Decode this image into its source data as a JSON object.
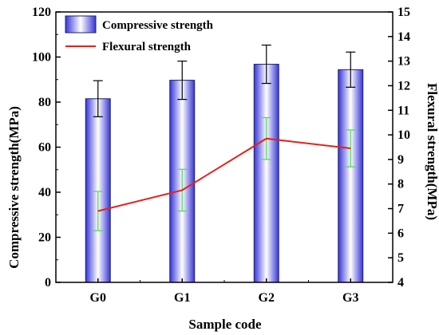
{
  "chart_data": {
    "type": "bar",
    "categories": [
      "G0",
      "G1",
      "G2",
      "G3"
    ],
    "xlabel": "Sample code",
    "ylabel_left": "Compressive strength(MPa)",
    "ylabel_right": "Flexural strength(MPa)",
    "ylim_left": [
      0,
      120
    ],
    "yticks_left": [
      0,
      20,
      40,
      60,
      80,
      100,
      120
    ],
    "ylim_right": [
      4,
      15
    ],
    "yticks_right": [
      4,
      5,
      6,
      7,
      8,
      9,
      10,
      11,
      12,
      13,
      14,
      15
    ],
    "grid": false,
    "legend_position": "top-left",
    "series": [
      {
        "name": "Compressive strength",
        "type": "bar",
        "axis": "left",
        "values": [
          81.5,
          89.7,
          96.8,
          94.4
        ],
        "errors": [
          8.0,
          8.5,
          8.5,
          7.8
        ],
        "color": "#4a4ae6"
      },
      {
        "name": "Flexural strength",
        "type": "line",
        "axis": "right",
        "values": [
          6.9,
          7.75,
          9.85,
          9.45
        ],
        "errors": [
          0.8,
          0.85,
          0.85,
          0.75
        ],
        "color": "#e8201a",
        "error_color": "#4cd94c"
      }
    ]
  }
}
